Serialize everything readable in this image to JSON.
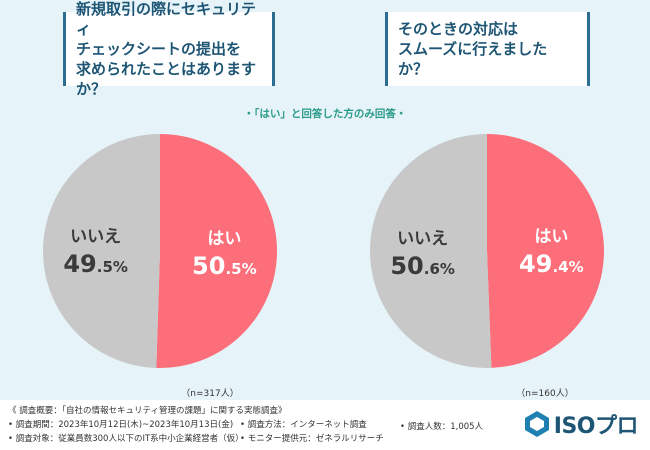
{
  "questions": {
    "q1": "新規取引の際にセキュリティ\nチェックシートの提出を\n求められたことはありますか？",
    "q2": "そのときの対応は\nスムーズに行えましたか？"
  },
  "note": "・「はい」と回答した方のみ回答・",
  "colors": {
    "yes": "#fc6e7a",
    "no": "#c8c8c8",
    "accent": "#1e5574"
  },
  "chart_data": [
    {
      "type": "pie",
      "sample": "（n=317人）",
      "slices": [
        {
          "label": "はい",
          "value": 50.5,
          "num": "50",
          "dec": ".5%"
        },
        {
          "label": "いいえ",
          "value": 49.5,
          "num": "49",
          "dec": ".5%"
        }
      ]
    },
    {
      "type": "pie",
      "sample": "（n=160人）",
      "slices": [
        {
          "label": "はい",
          "value": 49.4,
          "num": "49",
          "dec": ".4%"
        },
        {
          "label": "いいえ",
          "value": 50.6,
          "num": "50",
          "dec": ".6%"
        }
      ]
    }
  ],
  "footer": {
    "line1": "《 調査概要：「自社の情報セキュリティ管理の課題」に関する実態調査》",
    "period": "• 調査期間：2023年10月12日(木)~2023年10月13日(金)",
    "method": "• 調査方法：インターネット調査",
    "count": "• 調査人数：1,005人",
    "target": "• 調査対象：従業員数300人以下のIT系中小企業経営者（仮）",
    "provider": "• モニター提供元：ゼネラルリサーチ"
  },
  "logo": {
    "text": "ISOプロ",
    "icon": "hexagon-logo-icon"
  }
}
